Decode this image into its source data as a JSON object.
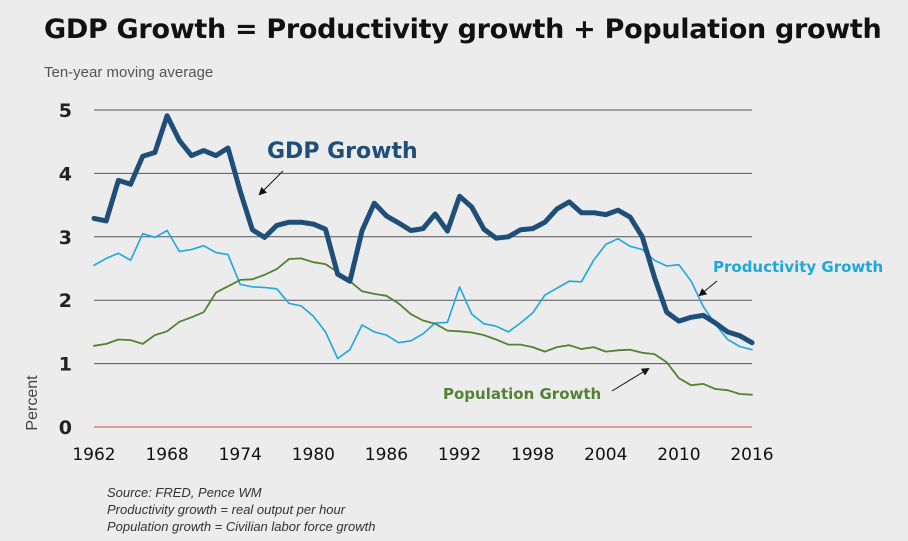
{
  "chart_data": {
    "type": "line",
    "title": "GDP Growth = Productivity growth + Population growth",
    "subtitle": "Ten-year moving average",
    "ylabel": "Percent",
    "xlabel": "",
    "xlim": [
      1962,
      2016
    ],
    "ylim": [
      0,
      5
    ],
    "yticks": [
      0,
      1,
      2,
      3,
      4,
      5
    ],
    "xticks": [
      1962,
      1968,
      1974,
      1980,
      1986,
      1992,
      1998,
      2004,
      2010,
      2016
    ],
    "grid": "horizontal",
    "x": [
      1962,
      1963,
      1964,
      1965,
      1966,
      1967,
      1968,
      1969,
      1970,
      1971,
      1972,
      1973,
      1974,
      1975,
      1976,
      1977,
      1978,
      1979,
      1980,
      1981,
      1982,
      1983,
      1984,
      1985,
      1986,
      1987,
      1988,
      1989,
      1990,
      1991,
      1992,
      1993,
      1994,
      1995,
      1996,
      1997,
      1998,
      1999,
      2000,
      2001,
      2002,
      2003,
      2004,
      2005,
      2006,
      2007,
      2008,
      2009,
      2010,
      2011,
      2012,
      2013,
      2014,
      2015,
      2016
    ],
    "series": [
      {
        "name": "GDP Growth",
        "color": "#1f4e79",
        "values": [
          3.29,
          3.25,
          3.89,
          3.83,
          4.27,
          4.33,
          4.91,
          4.52,
          4.28,
          4.36,
          4.28,
          4.4,
          3.72,
          3.11,
          2.99,
          3.18,
          3.23,
          3.23,
          3.2,
          3.12,
          2.41,
          2.3,
          3.1,
          3.53,
          3.33,
          3.22,
          3.1,
          3.13,
          3.36,
          3.09,
          3.64,
          3.47,
          3.12,
          2.98,
          3.0,
          3.11,
          3.13,
          3.23,
          3.44,
          3.55,
          3.38,
          3.38,
          3.35,
          3.42,
          3.31,
          3.0,
          2.36,
          1.81,
          1.67,
          1.73,
          1.76,
          1.64,
          1.5,
          1.44,
          1.33
        ]
      },
      {
        "name": "Productivity Growth",
        "color": "#1ca7e0",
        "values": [
          2.55,
          2.66,
          2.74,
          2.63,
          3.05,
          2.99,
          3.1,
          2.77,
          2.8,
          2.86,
          2.75,
          2.72,
          2.25,
          2.21,
          2.2,
          2.18,
          1.95,
          1.91,
          1.75,
          1.5,
          1.08,
          1.22,
          1.61,
          1.5,
          1.45,
          1.33,
          1.36,
          1.47,
          1.64,
          1.65,
          2.21,
          1.78,
          1.63,
          1.59,
          1.5,
          1.64,
          1.8,
          2.08,
          2.19,
          2.3,
          2.29,
          2.63,
          2.88,
          2.97,
          2.85,
          2.8,
          2.63,
          2.54,
          2.56,
          2.3,
          1.9,
          1.62,
          1.38,
          1.27,
          1.22
        ]
      },
      {
        "name": "Population Growth",
        "color": "#548235",
        "values": [
          1.28,
          1.31,
          1.38,
          1.37,
          1.31,
          1.45,
          1.51,
          1.66,
          1.73,
          1.81,
          2.12,
          2.22,
          2.32,
          2.33,
          2.4,
          2.49,
          2.65,
          2.66,
          2.6,
          2.57,
          2.44,
          2.3,
          2.14,
          2.1,
          2.07,
          1.95,
          1.78,
          1.68,
          1.63,
          1.52,
          1.51,
          1.49,
          1.45,
          1.38,
          1.3,
          1.3,
          1.26,
          1.19,
          1.26,
          1.29,
          1.23,
          1.26,
          1.19,
          1.21,
          1.22,
          1.17,
          1.15,
          1.02,
          0.77,
          0.66,
          0.68,
          0.6,
          0.58,
          0.52,
          0.51
        ]
      }
    ],
    "annotations": [
      "GDP Growth",
      "Productivity Growth",
      "Population Growth"
    ]
  },
  "notes": [
    "Source: FRED, Pence WM",
    "Productivity growth = real output per hour",
    "Population growth = Civilian labor force growth"
  ]
}
